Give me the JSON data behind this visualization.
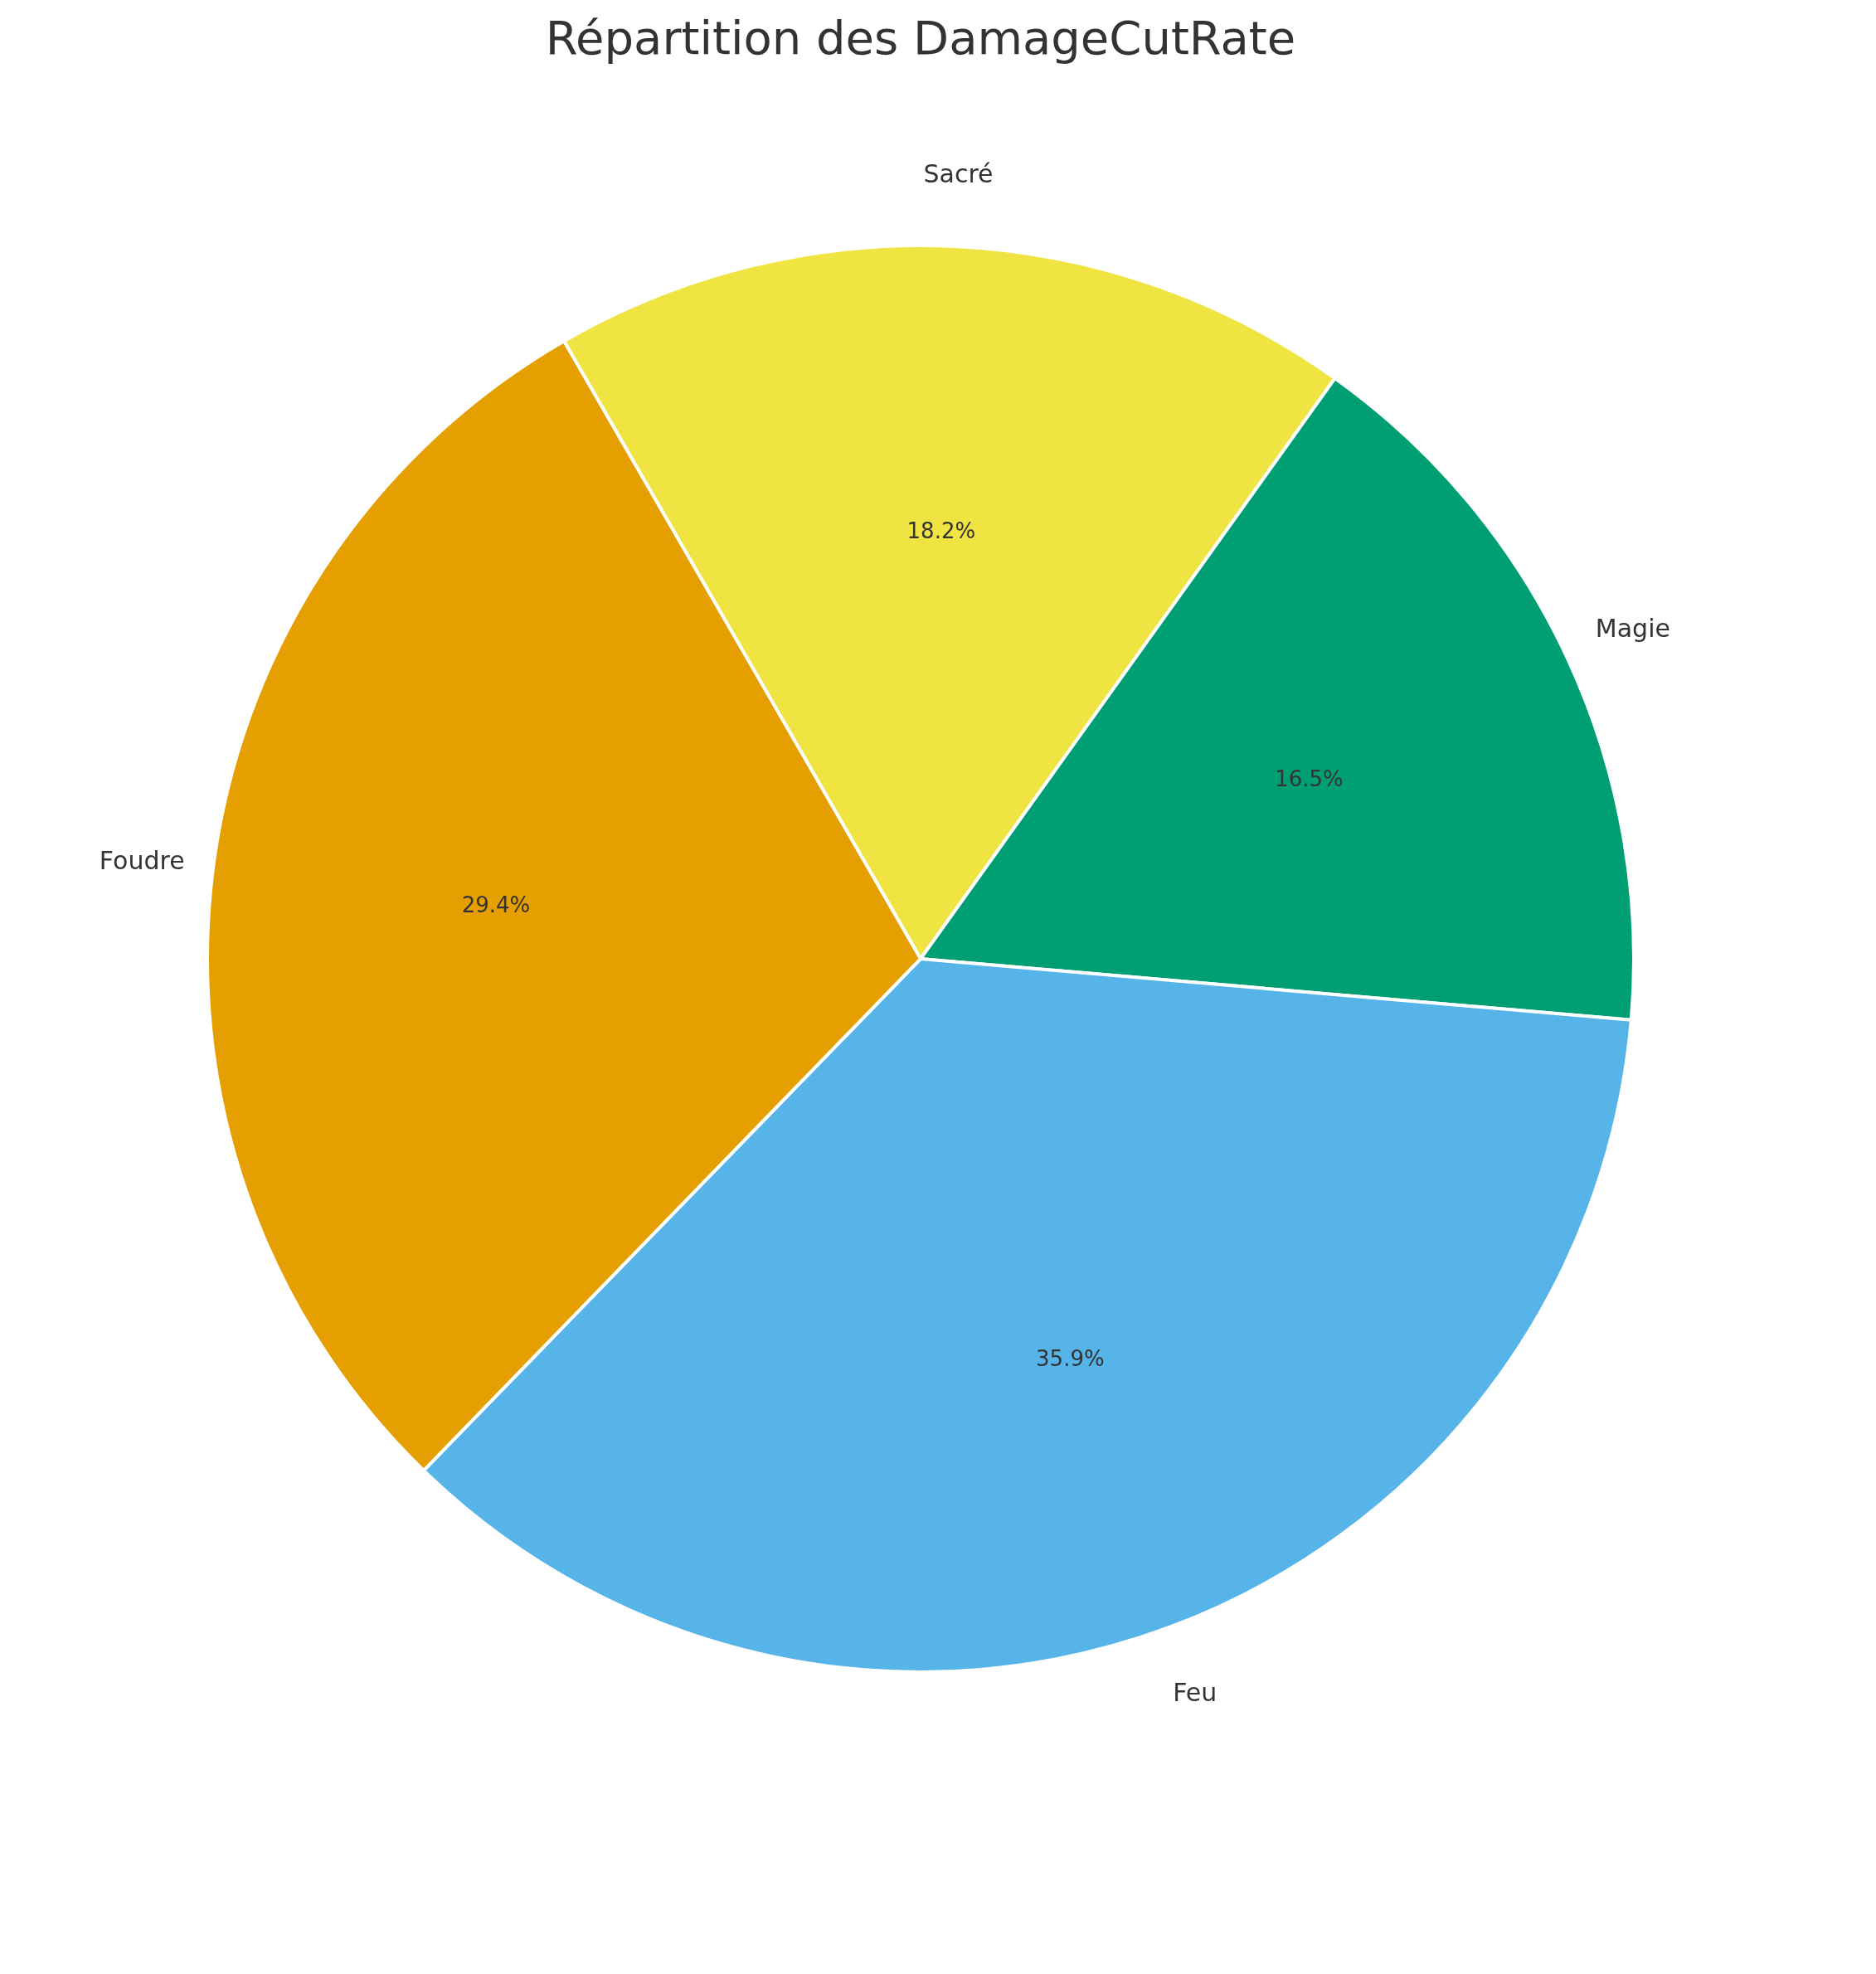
{
  "chart_data": {
    "type": "pie",
    "title": "Répartition des DamageCutRate",
    "categories": [
      "Sacré",
      "Magie",
      "Feu",
      "Foudre"
    ],
    "values": [
      18.2,
      16.5,
      35.9,
      29.4
    ],
    "colors": [
      "#f0e442",
      "#009e73",
      "#56b4e9",
      "#e69f00"
    ],
    "value_labels": [
      "18.2%",
      "16.5%",
      "35.9%",
      "29.4%"
    ],
    "legend": false
  }
}
